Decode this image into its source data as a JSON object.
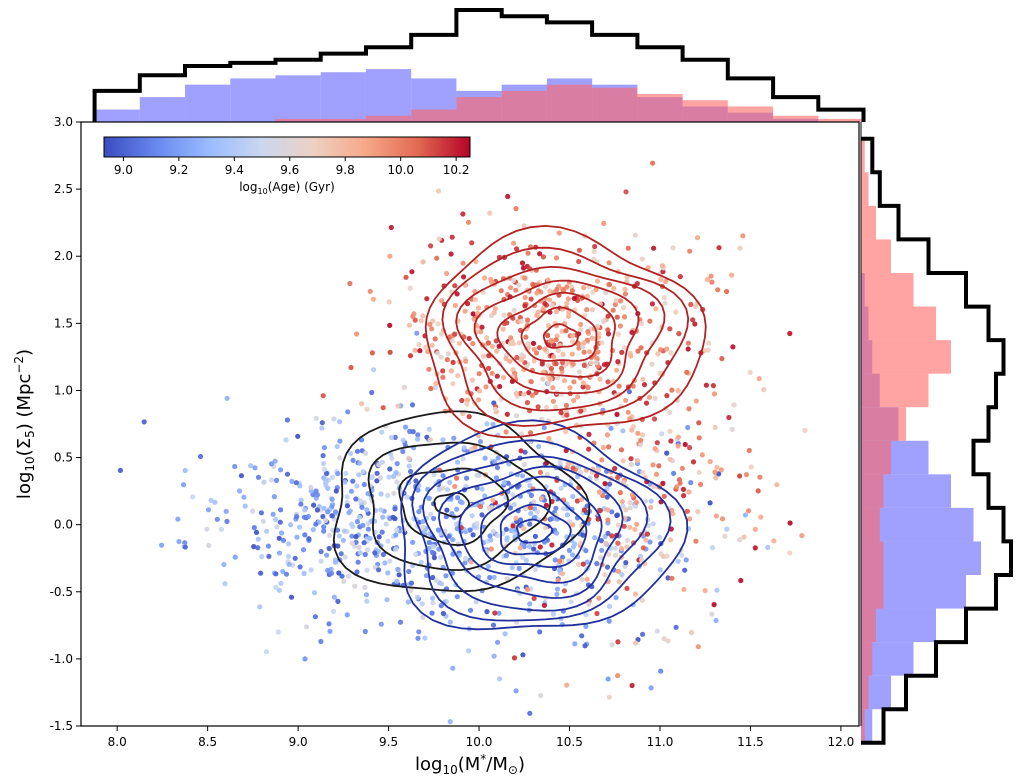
{
  "chart_data": {
    "type": "scatter",
    "xlabel": "log10(M*/M⊙)",
    "ylabel": "log10(Σ5) (Mpc−2)",
    "xlim": [
      7.8,
      12.1
    ],
    "ylim": [
      -1.5,
      3.0
    ],
    "xticks": [
      "8.0",
      "8.5",
      "9.0",
      "9.5",
      "10.0",
      "10.5",
      "11.0",
      "11.5",
      "12.0"
    ],
    "yticks": [
      "-1.5",
      "-1.0",
      "-0.5",
      "0.0",
      "0.5",
      "1.0",
      "1.5",
      "2.0",
      "2.5",
      "3.0"
    ],
    "grid": false,
    "colorbar": {
      "label": "log10(Age) (Gyr)",
      "ticks": [
        "9.0",
        "9.2",
        "9.4",
        "9.6",
        "9.8",
        "10.0",
        "10.2"
      ],
      "range": [
        8.93,
        10.25
      ],
      "colormap": [
        "#3b4cc0",
        "#6788ee",
        "#9abbff",
        "#c9d7f0",
        "#edd1c2",
        "#f7a889",
        "#e26952",
        "#b40426"
      ],
      "placement": "top-left inset"
    },
    "populations": [
      {
        "color": "#3b5bd6",
        "age_range": [
          8.93,
          9.6
        ],
        "components": [
          {
            "x_center": 9.3,
            "y_center": 0.05,
            "x_sd": 0.45,
            "y_sd": 0.35,
            "weight": 0.55
          },
          {
            "x_center": 10.35,
            "y_center": -0.05,
            "x_sd": 0.45,
            "y_sd": 0.42,
            "weight": 0.45
          }
        ]
      },
      {
        "color": "#c8323a",
        "age_range": [
          9.6,
          10.25
        ],
        "components": [
          {
            "x_center": 10.4,
            "y_center": 1.4,
            "x_sd": 0.42,
            "y_sd": 0.38,
            "weight": 0.7
          },
          {
            "x_center": 10.8,
            "y_center": 0.2,
            "x_sd": 0.4,
            "y_sd": 0.5,
            "weight": 0.3
          }
        ]
      }
    ],
    "contours": [
      {
        "color": "#1a1a1a",
        "levels": 4,
        "center": [
          9.85,
          0.15
        ]
      },
      {
        "color": "#1f2f9c",
        "levels": 8,
        "center": [
          10.3,
          -0.05
        ]
      },
      {
        "color": "#b22222",
        "levels": 7,
        "center": [
          10.45,
          1.4
        ]
      }
    ],
    "top_histogram": {
      "x": [
        8.0,
        8.25,
        8.5,
        8.75,
        9.0,
        9.25,
        9.5,
        9.75,
        10.0,
        10.25,
        10.5,
        10.75,
        11.0,
        11.25,
        11.5,
        11.75,
        12.0
      ],
      "total": [
        10,
        15,
        18,
        19,
        20,
        22,
        24,
        28,
        36,
        34,
        32,
        28,
        24,
        20,
        14,
        8,
        4
      ],
      "blue": [
        4,
        8,
        12,
        14,
        15,
        16,
        17,
        14,
        10,
        12,
        14,
        12,
        8,
        5,
        3,
        1,
        0
      ],
      "red": [
        0,
        0,
        0,
        0,
        1,
        1,
        2,
        4,
        8,
        10,
        12,
        11,
        9,
        7,
        5,
        2,
        1
      ]
    },
    "right_histogram": {
      "y": [
        -1.5,
        -1.25,
        -1.0,
        -0.75,
        -0.5,
        -0.25,
        0.0,
        0.25,
        0.5,
        0.75,
        1.0,
        1.25,
        1.5,
        1.75,
        2.0,
        2.25,
        2.5,
        2.75
      ],
      "total": [
        6,
        12,
        20,
        28,
        36,
        40,
        38,
        34,
        30,
        34,
        36,
        38,
        34,
        28,
        18,
        10,
        5,
        3
      ],
      "blue": [
        3,
        8,
        14,
        20,
        28,
        32,
        30,
        24,
        18,
        10,
        5,
        3,
        2,
        1,
        0,
        0,
        0,
        0
      ],
      "red": [
        1,
        2,
        3,
        4,
        6,
        6,
        5,
        6,
        8,
        12,
        18,
        24,
        20,
        14,
        8,
        4,
        2,
        1
      ]
    }
  }
}
